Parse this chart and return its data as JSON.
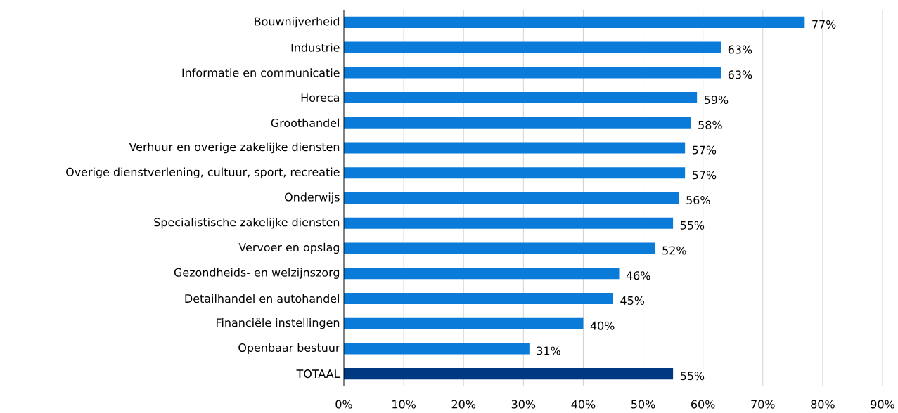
{
  "chart_data": {
    "type": "bar",
    "orientation": "horizontal",
    "categories": [
      "Bouwnijverheid",
      "Industrie",
      "Informatie en communicatie",
      "Horeca",
      "Groothandel",
      "Verhuur en overige zakelijke diensten",
      "Overige dienstverlening, cultuur, sport, recreatie",
      "Onderwijs",
      "Specialistische zakelijke diensten",
      "Vervoer en opslag",
      "Gezondheids- en welzijnszorg",
      "Detailhandel en autohandel",
      "Financiële instellingen",
      "Openbaar bestuur",
      "TOTAAL"
    ],
    "values": [
      77,
      63,
      63,
      59,
      58,
      57,
      57,
      56,
      55,
      52,
      46,
      45,
      40,
      31,
      55
    ],
    "value_labels": [
      "77%",
      "63%",
      "63%",
      "59%",
      "58%",
      "57%",
      "57%",
      "56%",
      "55%",
      "52%",
      "46%",
      "45%",
      "40%",
      "31%",
      "55%"
    ],
    "colors": [
      "#0a7bd8",
      "#0a7bd8",
      "#0a7bd8",
      "#0a7bd8",
      "#0a7bd8",
      "#0a7bd8",
      "#0a7bd8",
      "#0a7bd8",
      "#0a7bd8",
      "#0a7bd8",
      "#0a7bd8",
      "#0a7bd8",
      "#0a7bd8",
      "#0a7bd8",
      "#003882"
    ],
    "xlim": [
      0,
      90
    ],
    "xticks": [
      {
        "value": 0,
        "label": "0%"
      },
      {
        "value": 10,
        "label": "10%"
      },
      {
        "value": 20,
        "label": "20%"
      },
      {
        "value": 30,
        "label": "30%"
      },
      {
        "value": 40,
        "label": "40%"
      },
      {
        "value": 50,
        "label": "50%"
      },
      {
        "value": 60,
        "label": "60%"
      },
      {
        "value": 70,
        "label": "70%"
      },
      {
        "value": 80,
        "label": "80%"
      },
      {
        "value": 90,
        "label": "90%"
      }
    ],
    "grid": "x"
  }
}
